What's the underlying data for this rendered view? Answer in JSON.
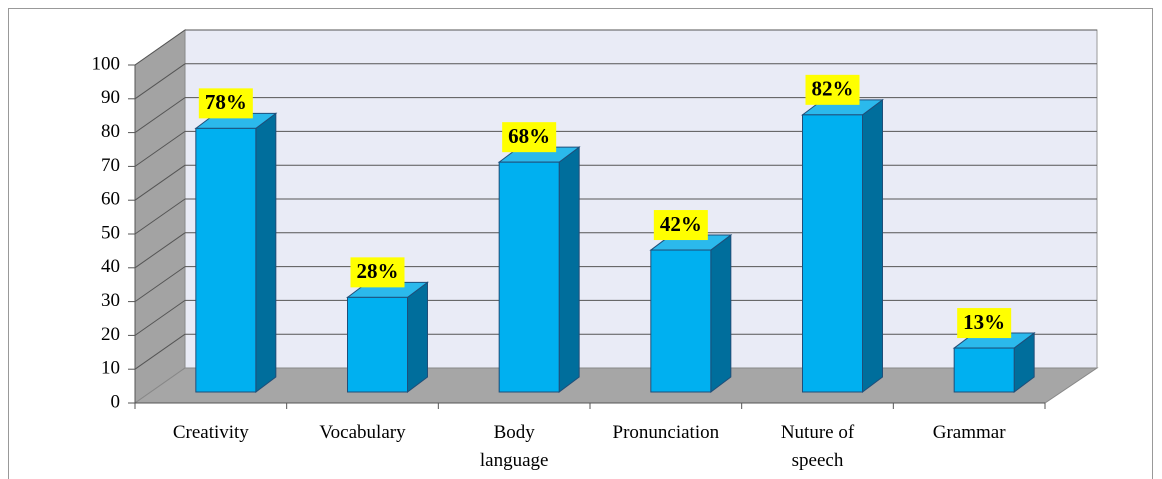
{
  "chart_data": {
    "type": "bar3d",
    "categories": [
      "Creativity",
      "Vocabulary",
      "Body\nlanguage",
      "Pronunciation",
      "Nuture of\nspeech",
      "Grammar"
    ],
    "values": [
      78,
      28,
      68,
      42,
      82,
      13
    ],
    "value_labels": [
      "78%",
      "28%",
      "68%",
      "42%",
      "82%",
      "13%"
    ],
    "color": "#00b0f0",
    "ylim": [
      0,
      100
    ],
    "yticks": [
      0,
      10,
      20,
      30,
      40,
      50,
      60,
      70,
      80,
      90,
      100
    ],
    "grid": true
  }
}
